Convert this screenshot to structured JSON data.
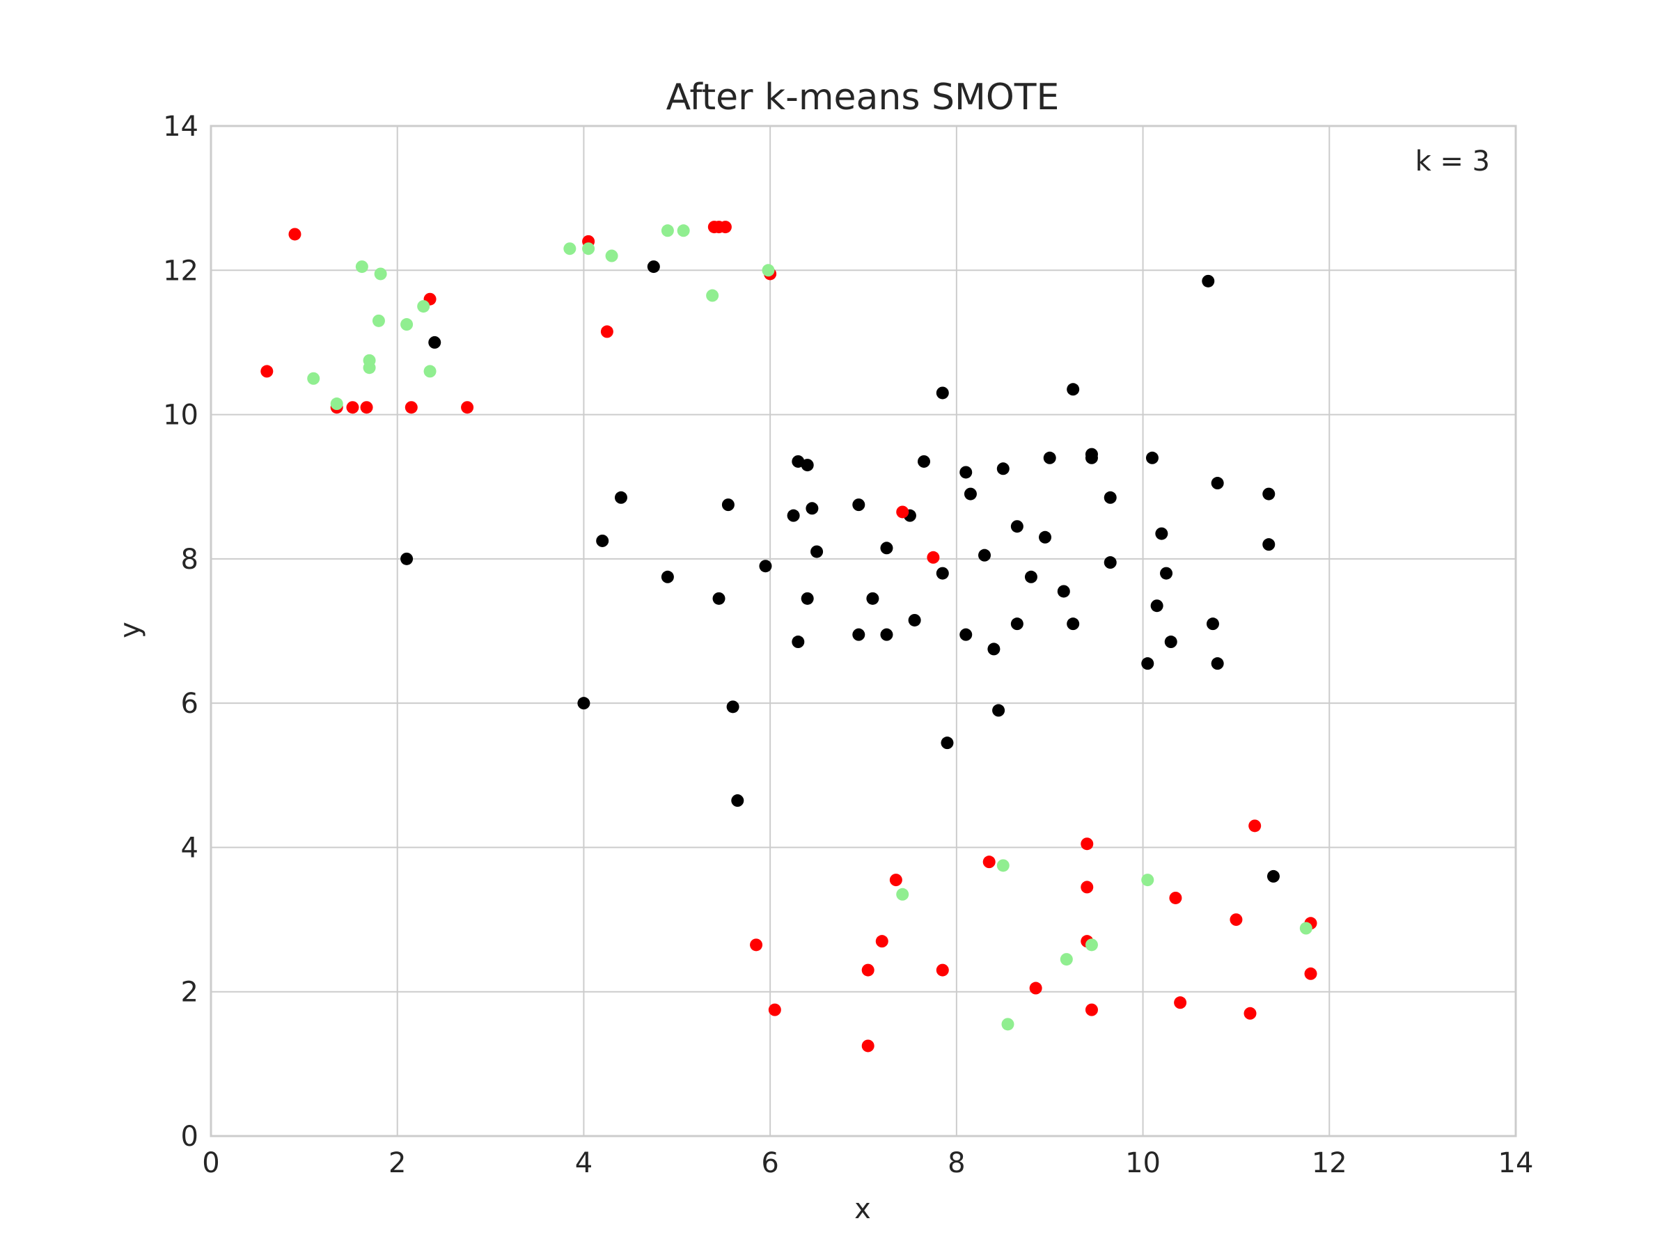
{
  "chart_data": {
    "type": "scatter",
    "title": "After k-means SMOTE",
    "xlabel": "x",
    "ylabel": "y",
    "xlim": [
      0,
      14
    ],
    "ylim": [
      0,
      14
    ],
    "xticks": [
      0,
      2,
      4,
      6,
      8,
      10,
      12,
      14
    ],
    "yticks": [
      0,
      2,
      4,
      6,
      8,
      10,
      12,
      14
    ],
    "grid": true,
    "annotation": "k = 3",
    "colors": {
      "majority": "#000000",
      "minority": "#ff0000",
      "synthetic": "#90ee90",
      "grid": "#cccccc",
      "frame": "#cccccc"
    },
    "series": [
      {
        "color": "#000000",
        "points": [
          [
            2.4,
            11.0
          ],
          [
            2.1,
            8.0
          ],
          [
            4.75,
            12.05
          ],
          [
            10.7,
            11.85
          ],
          [
            7.85,
            10.3
          ],
          [
            9.25,
            10.35
          ],
          [
            4.0,
            6.0
          ],
          [
            4.2,
            8.25
          ],
          [
            4.4,
            8.85
          ],
          [
            4.9,
            7.75
          ],
          [
            5.45,
            7.45
          ],
          [
            5.55,
            8.75
          ],
          [
            5.6,
            5.95
          ],
          [
            5.65,
            4.65
          ],
          [
            5.95,
            7.9
          ],
          [
            6.25,
            8.6
          ],
          [
            6.3,
            9.35
          ],
          [
            6.3,
            6.85
          ],
          [
            6.4,
            9.3
          ],
          [
            6.4,
            7.45
          ],
          [
            6.45,
            8.7
          ],
          [
            6.5,
            8.1
          ],
          [
            6.95,
            8.75
          ],
          [
            6.95,
            6.95
          ],
          [
            7.1,
            7.45
          ],
          [
            7.25,
            8.15
          ],
          [
            7.25,
            6.95
          ],
          [
            7.5,
            8.6
          ],
          [
            7.55,
            7.15
          ],
          [
            7.65,
            9.35
          ],
          [
            7.85,
            7.8
          ],
          [
            7.9,
            5.45
          ],
          [
            8.1,
            9.2
          ],
          [
            8.1,
            6.95
          ],
          [
            8.15,
            8.9
          ],
          [
            8.3,
            8.05
          ],
          [
            8.4,
            6.75
          ],
          [
            8.45,
            5.9
          ],
          [
            8.5,
            9.25
          ],
          [
            8.65,
            8.45
          ],
          [
            8.65,
            7.1
          ],
          [
            8.8,
            7.75
          ],
          [
            8.95,
            8.3
          ],
          [
            9.0,
            9.4
          ],
          [
            9.15,
            7.55
          ],
          [
            9.25,
            7.1
          ],
          [
            9.45,
            9.45
          ],
          [
            9.45,
            9.4
          ],
          [
            9.65,
            8.85
          ],
          [
            9.65,
            7.95
          ],
          [
            10.05,
            6.55
          ],
          [
            10.1,
            9.4
          ],
          [
            10.15,
            7.35
          ],
          [
            10.2,
            8.35
          ],
          [
            10.25,
            7.8
          ],
          [
            10.3,
            6.85
          ],
          [
            10.75,
            7.1
          ],
          [
            10.8,
            9.05
          ],
          [
            10.8,
            6.55
          ],
          [
            11.35,
            8.9
          ],
          [
            11.35,
            8.2
          ],
          [
            11.4,
            3.6
          ]
        ]
      },
      {
        "color": "#ff0000",
        "points": [
          [
            0.6,
            10.6
          ],
          [
            0.9,
            12.5
          ],
          [
            1.35,
            10.1
          ],
          [
            1.52,
            10.1
          ],
          [
            1.67,
            10.1
          ],
          [
            2.15,
            10.1
          ],
          [
            2.35,
            11.6
          ],
          [
            2.75,
            10.1
          ],
          [
            4.05,
            12.4
          ],
          [
            4.25,
            11.15
          ],
          [
            5.4,
            12.6
          ],
          [
            5.45,
            12.6
          ],
          [
            5.52,
            12.6
          ],
          [
            6.0,
            11.95
          ],
          [
            7.42,
            8.65
          ],
          [
            7.75,
            8.02
          ],
          [
            5.85,
            2.65
          ],
          [
            6.05,
            1.75
          ],
          [
            7.05,
            2.3
          ],
          [
            7.05,
            1.25
          ],
          [
            7.2,
            2.7
          ],
          [
            7.35,
            3.55
          ],
          [
            7.85,
            2.3
          ],
          [
            8.35,
            3.8
          ],
          [
            8.85,
            2.05
          ],
          [
            9.4,
            4.05
          ],
          [
            9.4,
            3.45
          ],
          [
            9.4,
            2.7
          ],
          [
            9.45,
            1.75
          ],
          [
            10.35,
            3.3
          ],
          [
            10.4,
            1.85
          ],
          [
            11.0,
            3.0
          ],
          [
            11.15,
            1.7
          ],
          [
            11.2,
            4.3
          ],
          [
            11.8,
            2.95
          ],
          [
            11.8,
            2.25
          ]
        ]
      },
      {
        "color": "#90ee90",
        "points": [
          [
            1.1,
            10.5
          ],
          [
            1.35,
            10.15
          ],
          [
            1.62,
            12.05
          ],
          [
            1.7,
            10.75
          ],
          [
            1.7,
            10.65
          ],
          [
            1.8,
            11.3
          ],
          [
            1.82,
            11.95
          ],
          [
            2.1,
            11.25
          ],
          [
            2.28,
            11.5
          ],
          [
            2.35,
            10.6
          ],
          [
            3.85,
            12.3
          ],
          [
            4.05,
            12.3
          ],
          [
            4.3,
            12.2
          ],
          [
            4.9,
            12.55
          ],
          [
            5.07,
            12.55
          ],
          [
            5.38,
            11.65
          ],
          [
            5.98,
            12.0
          ],
          [
            7.42,
            3.35
          ],
          [
            8.5,
            3.75
          ],
          [
            8.55,
            1.55
          ],
          [
            9.18,
            2.45
          ],
          [
            9.45,
            2.65
          ],
          [
            10.05,
            3.55
          ],
          [
            11.75,
            2.88
          ]
        ]
      }
    ]
  }
}
